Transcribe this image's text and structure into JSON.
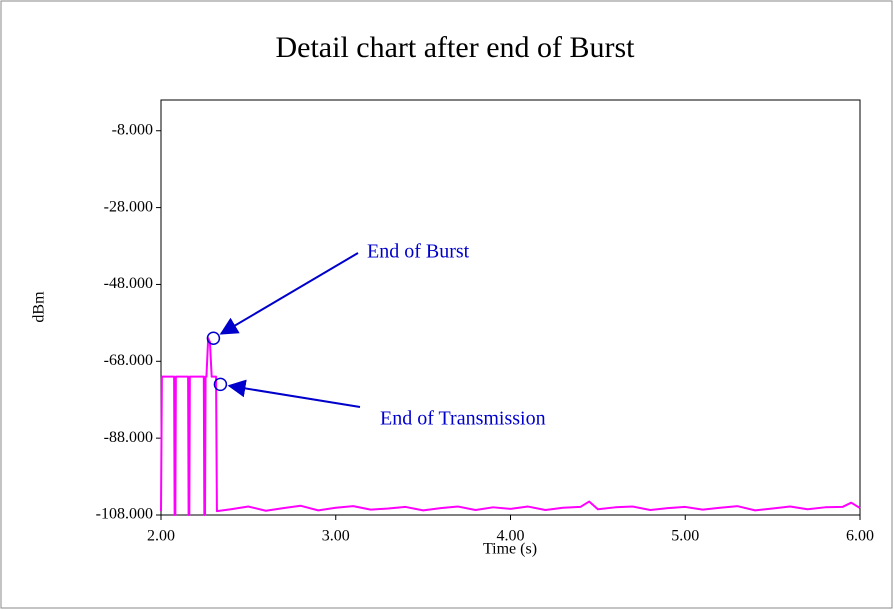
{
  "chart_data": {
    "type": "line",
    "title": "Detail chart after end of Burst",
    "x_label": "Time (s)",
    "y_label": "dBm",
    "xlim": [
      2,
      6
    ],
    "ylim": [
      -108,
      0
    ],
    "xticks": [
      {
        "value": 2,
        "label": "2.00"
      },
      {
        "value": 3,
        "label": "3.00"
      },
      {
        "value": 4,
        "label": "4.00"
      },
      {
        "value": 5,
        "label": "5.00"
      },
      {
        "value": 6,
        "label": "6.00"
      }
    ],
    "yticks": [
      {
        "value": -8,
        "label": "-8.000"
      },
      {
        "value": -28,
        "label": "-28.000"
      },
      {
        "value": -48,
        "label": "-48.000"
      },
      {
        "value": -68,
        "label": "-68.000"
      },
      {
        "value": -88,
        "label": "-88.000"
      },
      {
        "value": -108,
        "label": "-108.000"
      }
    ],
    "series": [
      {
        "color": "#ff00ff",
        "x": [
          2.0,
          2.005,
          2.01,
          2.075,
          2.078,
          2.082,
          2.085,
          2.155,
          2.158,
          2.162,
          2.165,
          2.245,
          2.248,
          2.252,
          2.255,
          2.26,
          2.27,
          2.28,
          2.29,
          2.3,
          2.31,
          2.315,
          2.32,
          2.4,
          2.5,
          2.6,
          2.7,
          2.8,
          2.9,
          3.0,
          3.1,
          3.2,
          3.3,
          3.4,
          3.5,
          3.6,
          3.7,
          3.8,
          3.9,
          4.0,
          4.1,
          4.2,
          4.3,
          4.4,
          4.45,
          4.5,
          4.6,
          4.7,
          4.8,
          4.9,
          5.0,
          5.1,
          5.2,
          5.3,
          5.4,
          5.5,
          5.6,
          5.7,
          5.8,
          5.9,
          5.95,
          6.0
        ],
        "values": [
          -107,
          -72,
          -72,
          -72,
          -108,
          -108,
          -72,
          -72,
          -108,
          -108,
          -72,
          -72,
          -108,
          -108,
          -72,
          -72,
          -62,
          -63,
          -72,
          -72,
          -72,
          -72,
          -107,
          -106.5,
          -105.8,
          -106.9,
          -106.2,
          -105.6,
          -106.8,
          -106.1,
          -105.7,
          -106.6,
          -106.3,
          -105.9,
          -106.8,
          -106.2,
          -105.8,
          -106.7,
          -106.0,
          -106.4,
          -105.8,
          -106.7,
          -106.1,
          -105.9,
          -104.5,
          -106.5,
          -106.0,
          -105.8,
          -106.7,
          -106.2,
          -105.9,
          -106.6,
          -106.1,
          -105.7,
          -106.8,
          -106.3,
          -105.8,
          -106.5,
          -106.0,
          -105.9,
          -104.8,
          -106.2
        ]
      }
    ],
    "annotations": [
      {
        "text": "End of Burst",
        "x": 2.3,
        "y": -62
      },
      {
        "text": "End of Transmission",
        "x": 2.34,
        "y": -74
      }
    ]
  }
}
